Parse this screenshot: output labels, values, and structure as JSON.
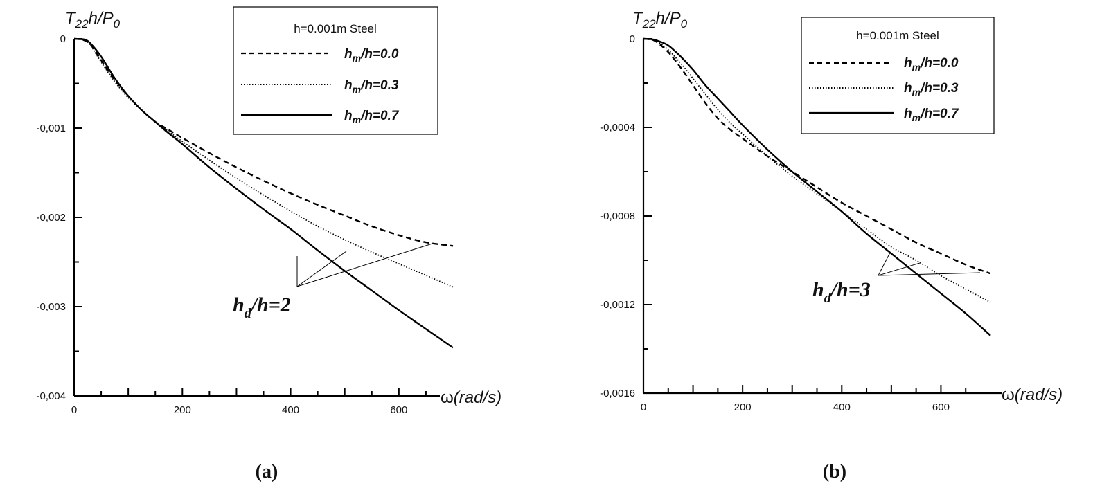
{
  "chart_data": [
    {
      "type": "line",
      "panel_label": "(a)",
      "ylabel": {
        "base": "T",
        "sub1": "22",
        "mid": "h/P",
        "sub2": "0"
      },
      "xlabel": {
        "sym": "ω",
        "unit": "(rad/s)"
      },
      "xlim": [
        0,
        700
      ],
      "ylim": [
        -0.004,
        0
      ],
      "xticks": [
        0,
        200,
        400,
        600
      ],
      "xtick_labels": [
        "0",
        "200",
        "400",
        "600"
      ],
      "yticks": [
        0,
        -0.001,
        -0.002,
        -0.003,
        -0.004
      ],
      "ytick_labels": [
        "0",
        "-0,001",
        "-0,002",
        "-0,003",
        "-0,004"
      ],
      "legend_title": "h=0.001m Steel",
      "legend_placement": "top-right",
      "annotation": {
        "main": "h",
        "sub": "d",
        "rest": "/h=2"
      },
      "series": [
        {
          "name": "h_m/h=0.0",
          "label_main": "h",
          "label_sub": "m",
          "label_rest": "/h=0.0",
          "style": "dashed",
          "x": [
            0,
            10,
            20,
            30,
            50,
            75,
            100,
            125,
            150,
            175,
            200,
            250,
            300,
            350,
            400,
            450,
            500,
            550,
            600,
            650,
            700
          ],
          "y": [
            0,
            -5e-06,
            -2e-05,
            -6e-05,
            -0.00024,
            -0.00046,
            -0.00064,
            -0.0008,
            -0.00093,
            -0.00102,
            -0.00111,
            -0.00128,
            -0.00144,
            -0.00159,
            -0.00173,
            -0.00186,
            -0.00198,
            -0.0021,
            -0.0022,
            -0.00228,
            -0.00232
          ]
        },
        {
          "name": "h_m/h=0.3",
          "label_main": "h",
          "label_sub": "m",
          "label_rest": "/h=0.3",
          "style": "dotted",
          "x": [
            0,
            10,
            20,
            30,
            50,
            75,
            100,
            125,
            150,
            175,
            200,
            250,
            300,
            350,
            400,
            450,
            500,
            550,
            600,
            650,
            700
          ],
          "y": [
            0,
            -5e-06,
            -2e-05,
            -7e-05,
            -0.00026,
            -0.00048,
            -0.00066,
            -0.0008,
            -0.00093,
            -0.00104,
            -0.00115,
            -0.00136,
            -0.00156,
            -0.00175,
            -0.00193,
            -0.0021,
            -0.00225,
            -0.00239,
            -0.00252,
            -0.00265,
            -0.00278
          ]
        },
        {
          "name": "h_m/h=0.7",
          "label_main": "h",
          "label_sub": "m",
          "label_rest": "/h=0.7",
          "style": "solid",
          "x": [
            0,
            10,
            20,
            30,
            50,
            75,
            100,
            125,
            150,
            175,
            200,
            250,
            300,
            350,
            400,
            450,
            500,
            550,
            600,
            650,
            700
          ],
          "y": [
            0,
            -3e-06,
            -1e-05,
            -5e-05,
            -0.0002,
            -0.00044,
            -0.00064,
            -0.0008,
            -0.00093,
            -0.00106,
            -0.00118,
            -0.00144,
            -0.00168,
            -0.00191,
            -0.00213,
            -0.00237,
            -0.0026,
            -0.00282,
            -0.00304,
            -0.00325,
            -0.00346
          ]
        }
      ]
    },
    {
      "type": "line",
      "panel_label": "(b)",
      "ylabel": {
        "base": "T",
        "sub1": "22",
        "mid": "h/P",
        "sub2": "0"
      },
      "xlabel": {
        "sym": "ω",
        "unit": "(rad/s)"
      },
      "xlim": [
        0,
        700
      ],
      "ylim": [
        -0.0016,
        0
      ],
      "xticks": [
        0,
        200,
        400,
        600
      ],
      "xtick_labels": [
        "0",
        "200",
        "400",
        "600"
      ],
      "yticks": [
        0,
        -0.0004,
        -0.0008,
        -0.0012,
        -0.0016
      ],
      "ytick_labels": [
        "0",
        "-0,0004",
        "-0,0008",
        "-0,0012",
        "-0,0016"
      ],
      "legend_title": "h=0.001m Steel",
      "legend_placement": "top-right",
      "annotation": {
        "main": "h",
        "sub": "d",
        "rest": "/h=3"
      },
      "series": [
        {
          "name": "h_m/h=0.0",
          "label_main": "h",
          "label_sub": "m",
          "label_rest": "/h=0.0",
          "style": "dashed",
          "x": [
            0,
            10,
            20,
            30,
            50,
            75,
            100,
            125,
            150,
            175,
            200,
            250,
            300,
            350,
            400,
            450,
            500,
            550,
            600,
            650,
            700
          ],
          "y": [
            0,
            -2e-06,
            -6e-06,
            -2e-05,
            -6e-05,
            -0.00013,
            -0.00021,
            -0.00029,
            -0.00036,
            -0.00041,
            -0.00045,
            -0.00053,
            -0.0006,
            -0.00067,
            -0.00074,
            -0.0008,
            -0.00086,
            -0.00092,
            -0.00097,
            -0.00102,
            -0.00106
          ]
        },
        {
          "name": "h_m/h=0.3",
          "label_main": "h",
          "label_sub": "m",
          "label_rest": "/h=0.3",
          "style": "dotted",
          "x": [
            0,
            10,
            20,
            30,
            50,
            75,
            100,
            125,
            150,
            175,
            200,
            250,
            300,
            350,
            400,
            450,
            500,
            550,
            600,
            650,
            700
          ],
          "y": [
            0,
            -2e-06,
            -6e-06,
            -1.5e-05,
            -5e-05,
            -0.00011,
            -0.00018,
            -0.00025,
            -0.00032,
            -0.00038,
            -0.00043,
            -0.00053,
            -0.00062,
            -0.0007,
            -0.00078,
            -0.00086,
            -0.00094,
            -0.001,
            -0.00107,
            -0.00113,
            -0.00119
          ]
        },
        {
          "name": "h_m/h=0.7",
          "label_main": "h",
          "label_sub": "m",
          "label_rest": "/h=0.7",
          "style": "solid",
          "x": [
            0,
            10,
            20,
            30,
            50,
            75,
            100,
            125,
            150,
            175,
            200,
            250,
            300,
            350,
            400,
            450,
            500,
            550,
            600,
            650,
            700
          ],
          "y": [
            0,
            -1e-06,
            -3e-06,
            -1e-05,
            -3e-05,
            -8e-05,
            -0.00014,
            -0.00021,
            -0.00027,
            -0.00033,
            -0.00039,
            -0.0005,
            -0.0006,
            -0.00069,
            -0.00078,
            -0.00088,
            -0.00097,
            -0.00106,
            -0.00115,
            -0.00124,
            -0.00134
          ]
        }
      ]
    }
  ]
}
